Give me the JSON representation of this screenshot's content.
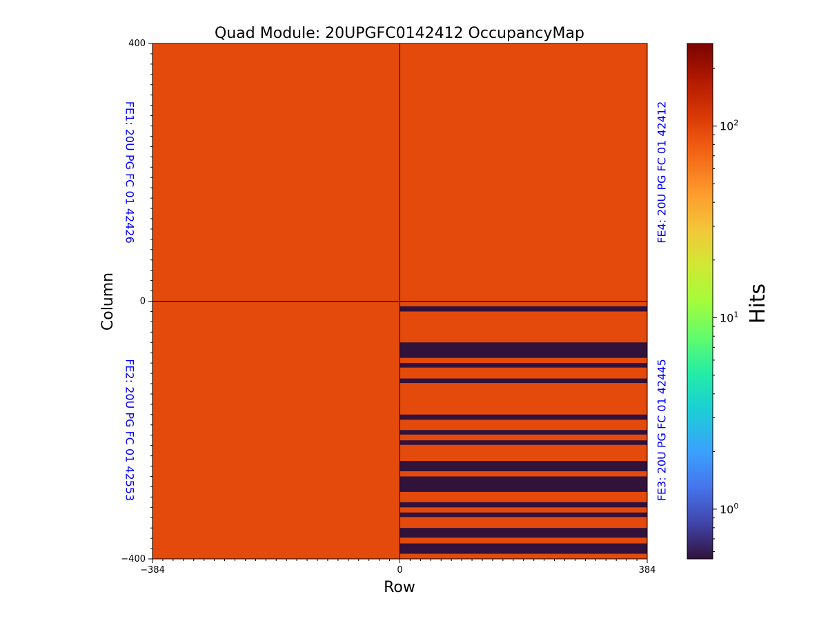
{
  "chart_data": {
    "type": "heatmap",
    "title": "Quad Module: 20UPGFC0142412 OccupancyMap",
    "xlabel": "Row",
    "ylabel": "Column",
    "xlim": [
      -384,
      384
    ],
    "ylim": [
      -400,
      400
    ],
    "x_ticks": [
      {
        "value": -384,
        "label": "−384"
      },
      {
        "value": 0,
        "label": "0"
      },
      {
        "value": 384,
        "label": "384"
      }
    ],
    "y_ticks": [
      {
        "value": 400,
        "label": "400"
      },
      {
        "value": 0,
        "label": "0"
      },
      {
        "value": -400,
        "label": "−400"
      }
    ],
    "frontends": [
      {
        "label": "FE1: 20U PG FC 01 42426",
        "x_range": [
          -384,
          0
        ],
        "y_range": [
          0,
          400
        ],
        "hits": 150
      },
      {
        "label": "FE2: 20U PG FC 01 42553",
        "x_range": [
          -384,
          0
        ],
        "y_range": [
          -400,
          0
        ],
        "hits": 150
      },
      {
        "label": "FE3: 20U PG FC 01 42445",
        "x_range": [
          0,
          384
        ],
        "y_range": [
          -400,
          0
        ],
        "hits": 150
      },
      {
        "label": "FE4: 20U PG FC 01 42412",
        "x_range": [
          0,
          384
        ],
        "y_range": [
          0,
          400
        ],
        "hits": 150
      }
    ],
    "dead_bands": [
      {
        "frontend": "FE3",
        "x_range": [
          0,
          384
        ],
        "y_range": [
          -16,
          -8
        ],
        "hits": 0.5
      },
      {
        "frontend": "FE3",
        "x_range": [
          0,
          384
        ],
        "y_range": [
          -88,
          -64
        ],
        "hits": 0.5
      },
      {
        "frontend": "FE3",
        "x_range": [
          0,
          384
        ],
        "y_range": [
          -103,
          -96
        ],
        "hits": 0.5
      },
      {
        "frontend": "FE3",
        "x_range": [
          0,
          384
        ],
        "y_range": [
          -127,
          -120
        ],
        "hits": 0.5
      },
      {
        "frontend": "FE3",
        "x_range": [
          0,
          384
        ],
        "y_range": [
          -184,
          -176
        ],
        "hits": 0.5
      },
      {
        "frontend": "FE3",
        "x_range": [
          0,
          384
        ],
        "y_range": [
          -207,
          -200
        ],
        "hits": 0.5
      },
      {
        "frontend": "FE3",
        "x_range": [
          0,
          384
        ],
        "y_range": [
          -223,
          -216
        ],
        "hits": 0.5
      },
      {
        "frontend": "FE3",
        "x_range": [
          0,
          384
        ],
        "y_range": [
          -264,
          -248
        ],
        "hits": 0.5
      },
      {
        "frontend": "FE3",
        "x_range": [
          0,
          384
        ],
        "y_range": [
          -296,
          -272
        ],
        "hits": 0.5
      },
      {
        "frontend": "FE3",
        "x_range": [
          0,
          384
        ],
        "y_range": [
          -320,
          -312
        ],
        "hits": 0.5
      },
      {
        "frontend": "FE3",
        "x_range": [
          0,
          384
        ],
        "y_range": [
          -335,
          -328
        ],
        "hits": 0.5
      },
      {
        "frontend": "FE3",
        "x_range": [
          0,
          384
        ],
        "y_range": [
          -367,
          -352
        ],
        "hits": 0.5
      },
      {
        "frontend": "FE3",
        "x_range": [
          0,
          384
        ],
        "y_range": [
          -392,
          -376
        ],
        "hits": 0.5
      }
    ],
    "colorbar": {
      "label": "Hits",
      "scale": "log",
      "range": [
        0.55,
        270
      ],
      "colormap": "turbo",
      "ticks": [
        {
          "value": 1,
          "base": "10",
          "exp": "0"
        },
        {
          "value": 10,
          "base": "10",
          "exp": "1"
        },
        {
          "value": 100,
          "base": "10",
          "exp": "2"
        }
      ]
    },
    "colors": {
      "active": "#e34a0c",
      "dead": "#30123b",
      "fe_label": "#0000ff"
    },
    "grid": false,
    "legend": "none"
  }
}
